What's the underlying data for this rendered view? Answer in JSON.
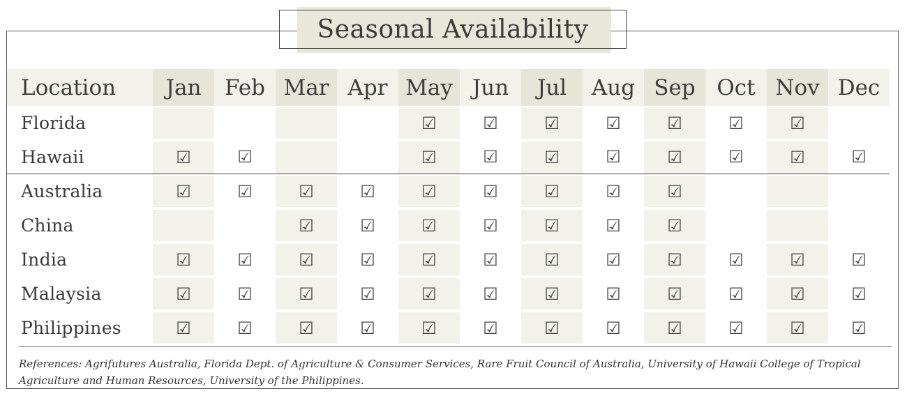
{
  "title": "Seasonal Availability",
  "header": {
    "location": "Location",
    "months": [
      "Jan",
      "Feb",
      "Mar",
      "Apr",
      "May",
      "Jun",
      "Jul",
      "Aug",
      "Sep",
      "Oct",
      "Nov",
      "Dec"
    ]
  },
  "check_symbol": "☑",
  "rows": [
    {
      "location": "Florida",
      "available": [
        false,
        false,
        false,
        false,
        true,
        true,
        true,
        true,
        true,
        true,
        true,
        false
      ]
    },
    {
      "location": "Hawaii",
      "available": [
        true,
        true,
        false,
        false,
        true,
        true,
        true,
        true,
        true,
        true,
        true,
        true
      ]
    },
    {
      "location": "Australia",
      "available": [
        true,
        true,
        true,
        true,
        true,
        true,
        true,
        true,
        true,
        false,
        false,
        false
      ]
    },
    {
      "location": "China",
      "available": [
        false,
        false,
        true,
        true,
        true,
        true,
        true,
        true,
        true,
        false,
        false,
        false
      ]
    },
    {
      "location": "India",
      "available": [
        true,
        true,
        true,
        true,
        true,
        true,
        true,
        true,
        true,
        true,
        true,
        true
      ]
    },
    {
      "location": "Malaysia",
      "available": [
        true,
        true,
        true,
        true,
        true,
        true,
        true,
        true,
        true,
        true,
        true,
        true
      ]
    },
    {
      "location": "Philippines",
      "available": [
        true,
        true,
        true,
        true,
        true,
        true,
        true,
        true,
        true,
        true,
        true,
        true
      ]
    }
  ],
  "references": "References: Agrifutures Australia, Florida Dept. of Agriculture & Consumer Services, Rare Fruit Council of Australia, University of Hawaii College of Tropical Agriculture and Human Resources, University of the Philippines."
}
